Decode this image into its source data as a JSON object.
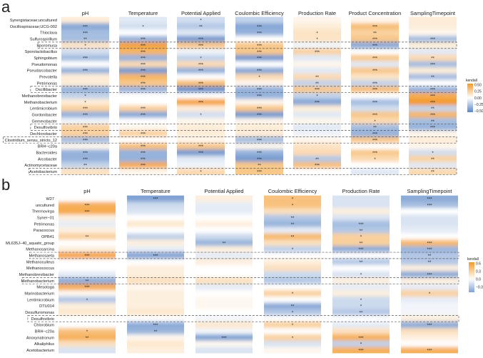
{
  "chart_data": [
    {
      "type": "heatmap",
      "panel_label": "a",
      "legend": {
        "title": "kendall",
        "ticks": [
          "0.50",
          "0.25",
          "0.00",
          "−0.25",
          "−0.50"
        ],
        "range": [
          -0.55,
          0.55
        ],
        "placement": "right"
      },
      "columns": [
        "pH",
        "Temperature",
        "Potential Applied",
        "Coulombic Efficiency",
        "Production Rate",
        "Product Concentration",
        "SamplingTimepoint"
      ],
      "rows": [
        "Synergistaceae;uncultured",
        "Oscillospiraceae;UCG-002",
        "Thioclava",
        "Sulfurospirillum",
        "Sporomusa",
        "Sporolactobacillus",
        "Sphingobium",
        "Pseudomonas",
        "Pseudarcobacter",
        "Prevotella",
        "Petrimonas",
        "Oscillibacter",
        "Methanobrevibacter",
        "Methanobacterium",
        "Lentimicrobium",
        "Gordonibacter",
        "Gemmobacter",
        "Desulfovibrio",
        "Dechlorobacter",
        "Clostridium_sensu_stricto_12",
        "BRH−c20a",
        "Bacteroides",
        "Arcobacter",
        "Actinomycetaceae",
        "Acetobacterium"
      ],
      "highlighted_rows": [
        "Sporomusa",
        "Oscillibacter",
        "Desulfovibrio",
        "Clostridium_sensu_stricto_12",
        "Acetobacterium"
      ],
      "values": [
        [
          0.1,
          -0.1,
          -0.15,
          -0.2,
          0.05,
          0.05,
          0.1
        ],
        [
          -0.4,
          -0.15,
          -0.25,
          -0.4,
          0.1,
          0.35,
          0.1
        ],
        [
          -0.3,
          0,
          -0.1,
          -0.35,
          0.15,
          0.25,
          0.05
        ],
        [
          -0.3,
          -0.35,
          -0.45,
          0,
          0.15,
          0.3,
          -0.3
        ],
        [
          0.15,
          0.5,
          0.3,
          0.3,
          -0.05,
          -0.4,
          0.1
        ],
        [
          -0.15,
          0.4,
          -0.05,
          0.3,
          0.25,
          0,
          -0.1
        ],
        [
          -0.3,
          -0.35,
          -0.2,
          -0.45,
          -0.1,
          0.3,
          0.2
        ],
        [
          0,
          0.2,
          0.2,
          0,
          0.05,
          -0.1,
          -0.3
        ],
        [
          -0.35,
          -0.45,
          -0.35,
          -0.4,
          -0.1,
          0.3,
          0.1
        ],
        [
          0.1,
          0.4,
          0,
          0.2,
          0.2,
          0.15,
          -0.3
        ],
        [
          0.1,
          0.3,
          0.35,
          0.05,
          -0.2,
          -0.2,
          0
        ],
        [
          -0.35,
          -0.35,
          -0.5,
          -0.35,
          0.3,
          0.35,
          -0.35
        ],
        [
          -0.2,
          0,
          0,
          -0.35,
          -0.2,
          0,
          0.45
        ],
        [
          0.1,
          0,
          0.5,
          0.05,
          -0.4,
          -0.3,
          0.55
        ],
        [
          0.25,
          0.25,
          0.1,
          0.3,
          0.1,
          -0.15,
          -0.2
        ],
        [
          -0.35,
          -0.4,
          -0.15,
          -0.45,
          -0.1,
          0.3,
          0.4
        ],
        [
          -0.05,
          0,
          0.05,
          0.05,
          0.05,
          0.2,
          -0.3
        ],
        [
          0.25,
          0.05,
          0.1,
          0.1,
          -0.1,
          -0.3,
          -0.35
        ],
        [
          0.25,
          0.25,
          0.1,
          0.1,
          -0.05,
          -0.35,
          0.05
        ],
        [
          -0.3,
          0,
          0.05,
          -0.3,
          0.05,
          0.3,
          0.1
        ],
        [
          0.05,
          0.35,
          0.3,
          0.05,
          0.15,
          0,
          0.05
        ],
        [
          -0.35,
          -0.35,
          -0.45,
          -0.35,
          0.2,
          0.3,
          -0.15
        ],
        [
          -0.35,
          -0.35,
          -0.1,
          -0.45,
          -0.25,
          0.2,
          0.25
        ],
        [
          -0.2,
          0.45,
          -0.05,
          0.3,
          0.35,
          0,
          -0.1
        ],
        [
          0.15,
          0.05,
          0.2,
          0.3,
          0,
          -0.1,
          0.2
        ]
      ],
      "significance": [
        [
          "",
          "",
          "*",
          "",
          "",
          "",
          ""
        ],
        [
          "***",
          "*",
          "**",
          "***",
          "",
          "***",
          ""
        ],
        [
          "***",
          "",
          "",
          "***",
          "*",
          "**",
          ""
        ],
        [
          "**",
          "***",
          "***",
          "",
          "*",
          "***",
          "***"
        ],
        [
          "*",
          "***",
          "***",
          "***",
          "",
          "***",
          ""
        ],
        [
          "",
          "***",
          "",
          "***",
          "***",
          "",
          ""
        ],
        [
          "***",
          "***",
          "*",
          "***",
          "",
          "***",
          "**"
        ],
        [
          "",
          "***",
          "***",
          "",
          "",
          "",
          "***"
        ],
        [
          "***",
          "***",
          "***",
          "***",
          "",
          "***",
          ""
        ],
        [
          "",
          "***",
          "",
          "*",
          "**",
          "",
          "**"
        ],
        [
          "",
          "***",
          "***",
          "",
          "**",
          "***",
          ""
        ],
        [
          "***",
          "***",
          "***",
          "***",
          "***",
          "***",
          "***"
        ],
        [
          "*",
          "",
          "",
          "***",
          "*",
          "",
          "***"
        ],
        [
          "*",
          "",
          "***",
          "",
          "***",
          "***",
          "***"
        ],
        [
          "***",
          "***",
          "",
          "***",
          "",
          "",
          "**"
        ],
        [
          "***",
          "***",
          "*",
          "***",
          "",
          "***",
          "***"
        ],
        [
          "",
          "",
          "",
          "",
          "",
          "*",
          "**"
        ],
        [
          "***",
          "",
          "",
          "",
          "",
          "**",
          "***"
        ],
        [
          "***",
          "***",
          "",
          "",
          "",
          "***",
          ""
        ],
        [
          "***",
          "",
          "",
          "***",
          "",
          "***",
          ""
        ],
        [
          "",
          "***",
          "***",
          "",
          "",
          "",
          ""
        ],
        [
          "***",
          "***",
          "***",
          "***",
          "",
          "***",
          "*"
        ],
        [
          "***",
          "***",
          "",
          "***",
          "**",
          "*",
          "**"
        ],
        [
          "**",
          "***",
          "",
          "**",
          "***",
          "",
          ""
        ],
        [
          "",
          "",
          "*",
          "***",
          "",
          "",
          "**"
        ]
      ]
    },
    {
      "type": "heatmap",
      "panel_label": "b",
      "legend": {
        "title": "kendall",
        "ticks": [
          "0.6",
          "0.3",
          "0.0",
          "−0.3"
        ],
        "range": [
          -0.5,
          0.65
        ],
        "placement": "right"
      },
      "columns": [
        "pH",
        "Temperature",
        "Potential Applied",
        "Coulombic Efficiency",
        "Production Rate",
        "SamplingTimepoint"
      ],
      "rows": [
        "W27",
        "uncultured",
        "Thermovirga",
        "Syner−01",
        "Petrimonas",
        "Paracoccus",
        "OPB41",
        "ML635J−40_aquatic_group",
        "Methanosarcina",
        "Methanosaeta",
        "Methanoculleus",
        "Methanococcus",
        "Methanobrevibacter",
        "Methanobacterium",
        "Mesotoga",
        "Marinobacterium",
        "Lentimicrobium",
        "DTU014",
        "Desulfuromonas",
        "Desulfovibrio",
        "Chlorobium",
        "BRH−c20a",
        "Anoxynatronum",
        "Alkaliphilus",
        "Acetobacterium"
      ],
      "highlighted_rows": [
        "Methanosaeta",
        "Methanobacterium",
        "Desulfovibrio"
      ],
      "values": [
        [
          0,
          -0.5,
          0.1,
          0.4,
          -0.15,
          -0.45
        ],
        [
          0.5,
          -0.2,
          -0.1,
          0.4,
          -0.15,
          -0.35
        ],
        [
          0.55,
          -0.15,
          -0.1,
          0.2,
          0.1,
          0
        ],
        [
          0.1,
          0,
          0,
          -0.3,
          -0.15,
          -0.15
        ],
        [
          -0.1,
          0.15,
          0.1,
          -0.4,
          -0.35,
          -0.15
        ],
        [
          0.1,
          0,
          0,
          -0.1,
          -0.3,
          -0.1
        ],
        [
          0.3,
          -0.25,
          -0.2,
          0.45,
          0.3,
          0
        ],
        [
          0,
          0.1,
          -0.4,
          0.2,
          0.3,
          0.45
        ],
        [
          0.1,
          -0.1,
          0.1,
          -0.25,
          -0.45,
          -0.4
        ],
        [
          0.6,
          -0.5,
          -0.1,
          0,
          0,
          -0.3
        ],
        [
          0,
          0,
          0.1,
          0.1,
          -0.3,
          -0.3
        ],
        [
          0,
          0.1,
          0,
          0.2,
          0,
          0.1
        ],
        [
          -0.1,
          0.1,
          0,
          -0.2,
          -0.15,
          -0.45
        ],
        [
          -0.45,
          0.2,
          0.2,
          -0.3,
          0.1,
          0.1
        ],
        [
          0.55,
          0.05,
          -0.1,
          0,
          -0.1,
          -0.1
        ],
        [
          0.05,
          0.1,
          0,
          0.3,
          0.1,
          0.3
        ],
        [
          -0.3,
          0.1,
          0.05,
          0,
          -0.2,
          -0.1
        ],
        [
          0.1,
          0.1,
          0.05,
          -0.45,
          -0.2,
          -0.05
        ],
        [
          0.15,
          0.15,
          0,
          -0.3,
          -0.3,
          -0.05
        ],
        [
          0,
          0,
          -0.05,
          0,
          0,
          0.1
        ],
        [
          0,
          -0.45,
          0.15,
          0.3,
          -0.1,
          -0.45
        ],
        [
          0.4,
          -0.4,
          -0.05,
          0,
          0.2,
          0.2
        ],
        [
          0.5,
          0.05,
          -0.5,
          0.3,
          0.5,
          0.1
        ],
        [
          0.2,
          0.15,
          0.05,
          -0.15,
          -0.25,
          0
        ],
        [
          -0.15,
          0.1,
          -0.15,
          0.05,
          0.5,
          0.5
        ]
      ],
      "significance": [
        [
          "",
          "***",
          "",
          "*",
          "",
          "***"
        ],
        [
          "***",
          "",
          "",
          "*",
          "",
          "***"
        ],
        [
          "***",
          "",
          "",
          "",
          "",
          ""
        ],
        [
          "",
          "",
          "",
          "**",
          "",
          ""
        ],
        [
          "",
          "",
          "",
          "**",
          "***",
          ""
        ],
        [
          "",
          "",
          "",
          "",
          "**",
          ""
        ],
        [
          "**",
          "",
          "",
          "**",
          "*",
          ""
        ],
        [
          "",
          "",
          "**",
          "",
          "**",
          "***"
        ],
        [
          "",
          "",
          "",
          "*",
          "***",
          "***"
        ],
        [
          "***",
          "***",
          "",
          "",
          "",
          "**"
        ],
        [
          "",
          "",
          "",
          "",
          "**",
          "**"
        ],
        [
          "",
          "",
          "",
          "",
          "",
          ""
        ],
        [
          "",
          "",
          "",
          "",
          "*",
          "***"
        ],
        [
          "**",
          "",
          "",
          "",
          "",
          ""
        ],
        [
          "***",
          "",
          "",
          "",
          "",
          ""
        ],
        [
          "",
          "",
          "",
          "*",
          "",
          "*"
        ],
        [
          "*",
          "",
          "",
          "",
          "*",
          ""
        ],
        [
          "",
          "",
          "",
          "**",
          "*",
          ""
        ],
        [
          "",
          "",
          "",
          "*",
          "**",
          ""
        ],
        [
          "",
          "",
          "",
          "",
          "",
          ""
        ],
        [
          "",
          "***",
          "",
          "*",
          "",
          "***"
        ],
        [
          "*",
          "**",
          "",
          "",
          "",
          ""
        ],
        [
          "**",
          "",
          "***",
          "*",
          "***",
          ""
        ],
        [
          "",
          "",
          "",
          "",
          "*",
          ""
        ],
        [
          "",
          "",
          "",
          "",
          "***",
          "***"
        ]
      ]
    }
  ],
  "colors": {
    "positive": "#F39A2B",
    "negative": "#5A86C6",
    "zero": "#FFFFFF",
    "highlight_box": "#555555"
  }
}
